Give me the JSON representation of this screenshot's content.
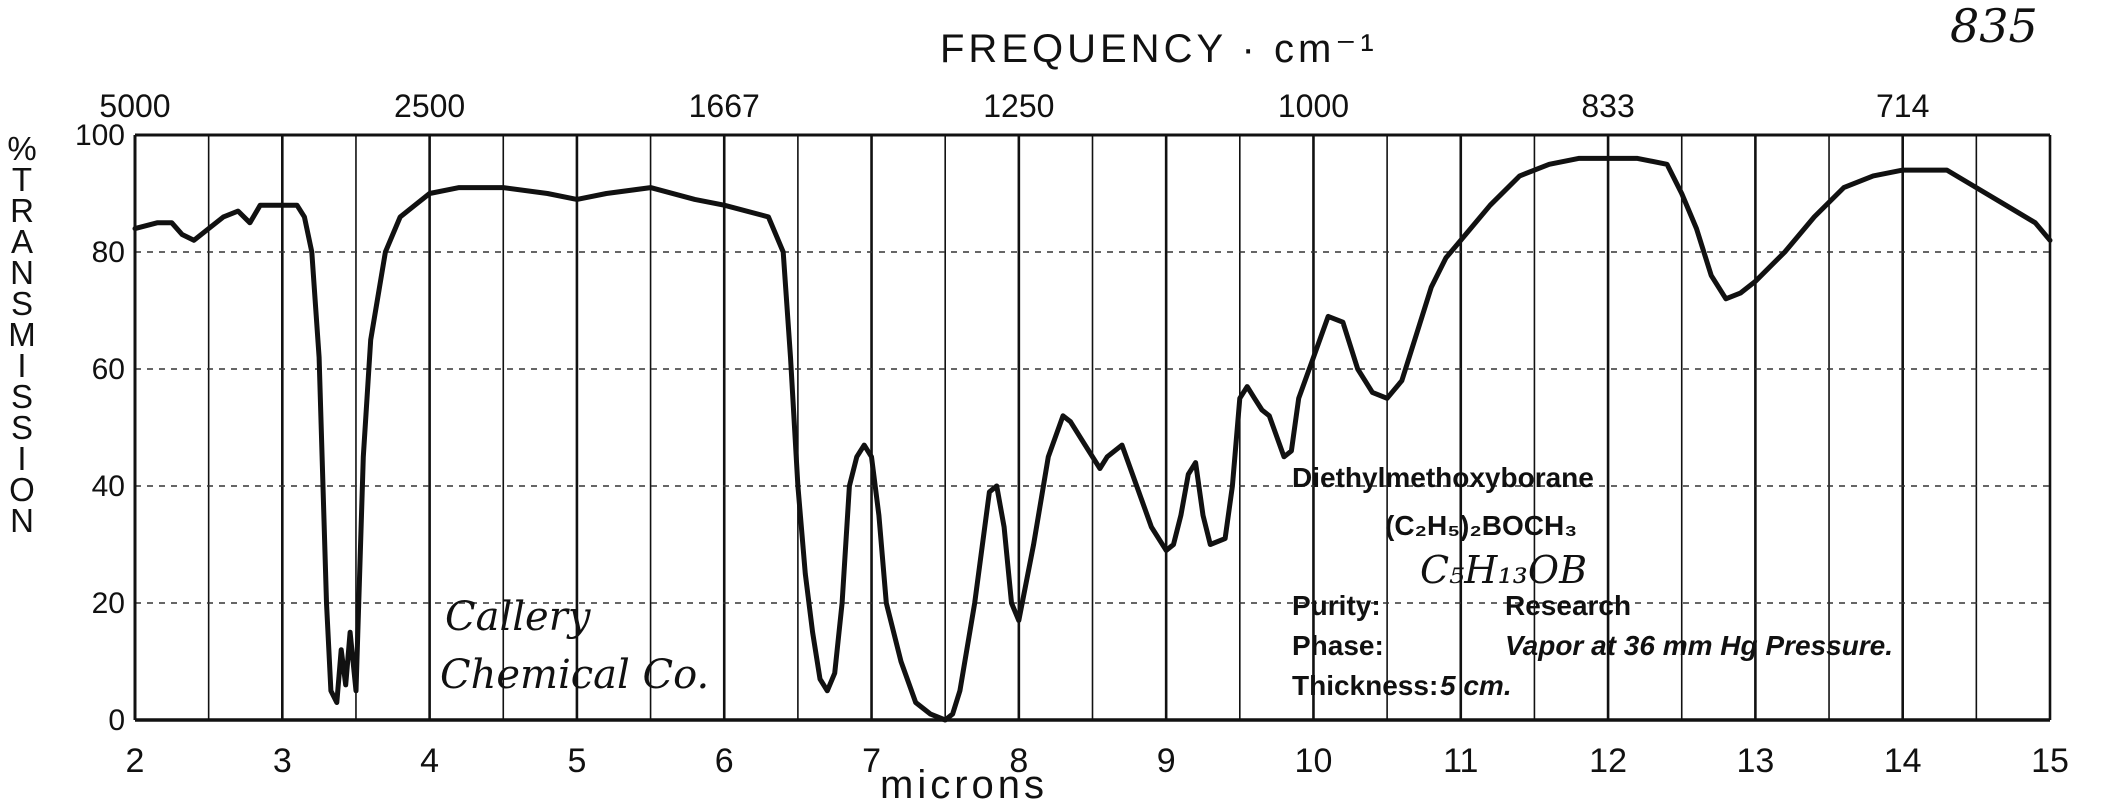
{
  "page_number": "835",
  "chart_data": {
    "type": "line",
    "title": "FREQUENCY · cm⁻¹",
    "xlabel": "microns",
    "ylabel": "% TRANSMISSION",
    "xlim": [
      2,
      15
    ],
    "ylim": [
      0,
      100
    ],
    "grid": true,
    "x_ticks": [
      "2",
      "3",
      "4",
      "5",
      "6",
      "7",
      "8",
      "9",
      "10",
      "11",
      "12",
      "13",
      "14",
      "15"
    ],
    "y_ticks": [
      "0",
      "20",
      "40",
      "60",
      "80",
      "100"
    ],
    "top_ticks": [
      {
        "label": "5000",
        "micron": 2.0
      },
      {
        "label": "2500",
        "micron": 4.0
      },
      {
        "label": "1667",
        "micron": 6.0
      },
      {
        "label": "1250",
        "micron": 8.0
      },
      {
        "label": "1000",
        "micron": 10.0
      },
      {
        "label": "833",
        "micron": 12.0
      },
      {
        "label": "714",
        "micron": 14.0
      }
    ],
    "series": [
      {
        "name": "",
        "points": [
          [
            2.0,
            84
          ],
          [
            2.15,
            85
          ],
          [
            2.25,
            85
          ],
          [
            2.32,
            83
          ],
          [
            2.4,
            82
          ],
          [
            2.5,
            84
          ],
          [
            2.6,
            86
          ],
          [
            2.7,
            87
          ],
          [
            2.78,
            85
          ],
          [
            2.85,
            88
          ],
          [
            3.0,
            88
          ],
          [
            3.1,
            88
          ],
          [
            3.15,
            86
          ],
          [
            3.2,
            80
          ],
          [
            3.25,
            62
          ],
          [
            3.3,
            20
          ],
          [
            3.33,
            5
          ],
          [
            3.37,
            3
          ],
          [
            3.4,
            12
          ],
          [
            3.43,
            6
          ],
          [
            3.46,
            15
          ],
          [
            3.5,
            5
          ],
          [
            3.55,
            45
          ],
          [
            3.6,
            65
          ],
          [
            3.7,
            80
          ],
          [
            3.8,
            86
          ],
          [
            3.9,
            88
          ],
          [
            4.0,
            90
          ],
          [
            4.2,
            91
          ],
          [
            4.5,
            91
          ],
          [
            4.8,
            90
          ],
          [
            5.0,
            89
          ],
          [
            5.2,
            90
          ],
          [
            5.5,
            91
          ],
          [
            5.8,
            89
          ],
          [
            6.0,
            88
          ],
          [
            6.3,
            86
          ],
          [
            6.4,
            80
          ],
          [
            6.45,
            62
          ],
          [
            6.5,
            40
          ],
          [
            6.55,
            25
          ],
          [
            6.6,
            15
          ],
          [
            6.65,
            7
          ],
          [
            6.7,
            5
          ],
          [
            6.75,
            8
          ],
          [
            6.8,
            20
          ],
          [
            6.85,
            40
          ],
          [
            6.9,
            45
          ],
          [
            6.95,
            47
          ],
          [
            7.0,
            45
          ],
          [
            7.05,
            35
          ],
          [
            7.1,
            20
          ],
          [
            7.2,
            10
          ],
          [
            7.3,
            3
          ],
          [
            7.4,
            1
          ],
          [
            7.5,
            0
          ],
          [
            7.55,
            1
          ],
          [
            7.6,
            5
          ],
          [
            7.7,
            20
          ],
          [
            7.8,
            39
          ],
          [
            7.85,
            40
          ],
          [
            7.9,
            33
          ],
          [
            7.95,
            20
          ],
          [
            8.0,
            17
          ],
          [
            8.1,
            30
          ],
          [
            8.2,
            45
          ],
          [
            8.3,
            52
          ],
          [
            8.35,
            51
          ],
          [
            8.45,
            47
          ],
          [
            8.55,
            43
          ],
          [
            8.6,
            45
          ],
          [
            8.7,
            47
          ],
          [
            8.8,
            40
          ],
          [
            8.9,
            33
          ],
          [
            9.0,
            29
          ],
          [
            9.05,
            30
          ],
          [
            9.1,
            35
          ],
          [
            9.15,
            42
          ],
          [
            9.2,
            44
          ],
          [
            9.25,
            35
          ],
          [
            9.3,
            30
          ],
          [
            9.4,
            31
          ],
          [
            9.45,
            40
          ],
          [
            9.5,
            55
          ],
          [
            9.55,
            57
          ],
          [
            9.6,
            55
          ],
          [
            9.65,
            53
          ],
          [
            9.7,
            52
          ],
          [
            9.8,
            45
          ],
          [
            9.85,
            46
          ],
          [
            9.9,
            55
          ],
          [
            10.0,
            62
          ],
          [
            10.1,
            69
          ],
          [
            10.2,
            68
          ],
          [
            10.3,
            60
          ],
          [
            10.4,
            56
          ],
          [
            10.5,
            55
          ],
          [
            10.6,
            58
          ],
          [
            10.7,
            66
          ],
          [
            10.8,
            74
          ],
          [
            10.9,
            79
          ],
          [
            11.0,
            82
          ],
          [
            11.2,
            88
          ],
          [
            11.4,
            93
          ],
          [
            11.6,
            95
          ],
          [
            11.8,
            96
          ],
          [
            12.0,
            96
          ],
          [
            12.2,
            96
          ],
          [
            12.4,
            95
          ],
          [
            12.5,
            90
          ],
          [
            12.6,
            84
          ],
          [
            12.7,
            76
          ],
          [
            12.8,
            72
          ],
          [
            12.9,
            73
          ],
          [
            13.0,
            75
          ],
          [
            13.2,
            80
          ],
          [
            13.4,
            86
          ],
          [
            13.6,
            91
          ],
          [
            13.8,
            93
          ],
          [
            14.0,
            94
          ],
          [
            14.3,
            94
          ],
          [
            14.5,
            91
          ],
          [
            14.7,
            88
          ],
          [
            14.9,
            85
          ],
          [
            15.0,
            82
          ]
        ]
      }
    ],
    "annotations": {
      "handwritten_source": [
        "Callery",
        "Chemical Co."
      ],
      "compound": "Diethylmethoxyborane",
      "formula_1": "(C₂H₅)₂BOCH₃",
      "formula_2": "C₅H₁₃OB",
      "purity_label": "Purity:",
      "purity_value": "Research",
      "phase_label": "Phase:",
      "phase_value": "Vapor at 36 mm Hg Pressure.",
      "thickness_label": "Thickness:",
      "thickness_value": "5 cm."
    }
  }
}
